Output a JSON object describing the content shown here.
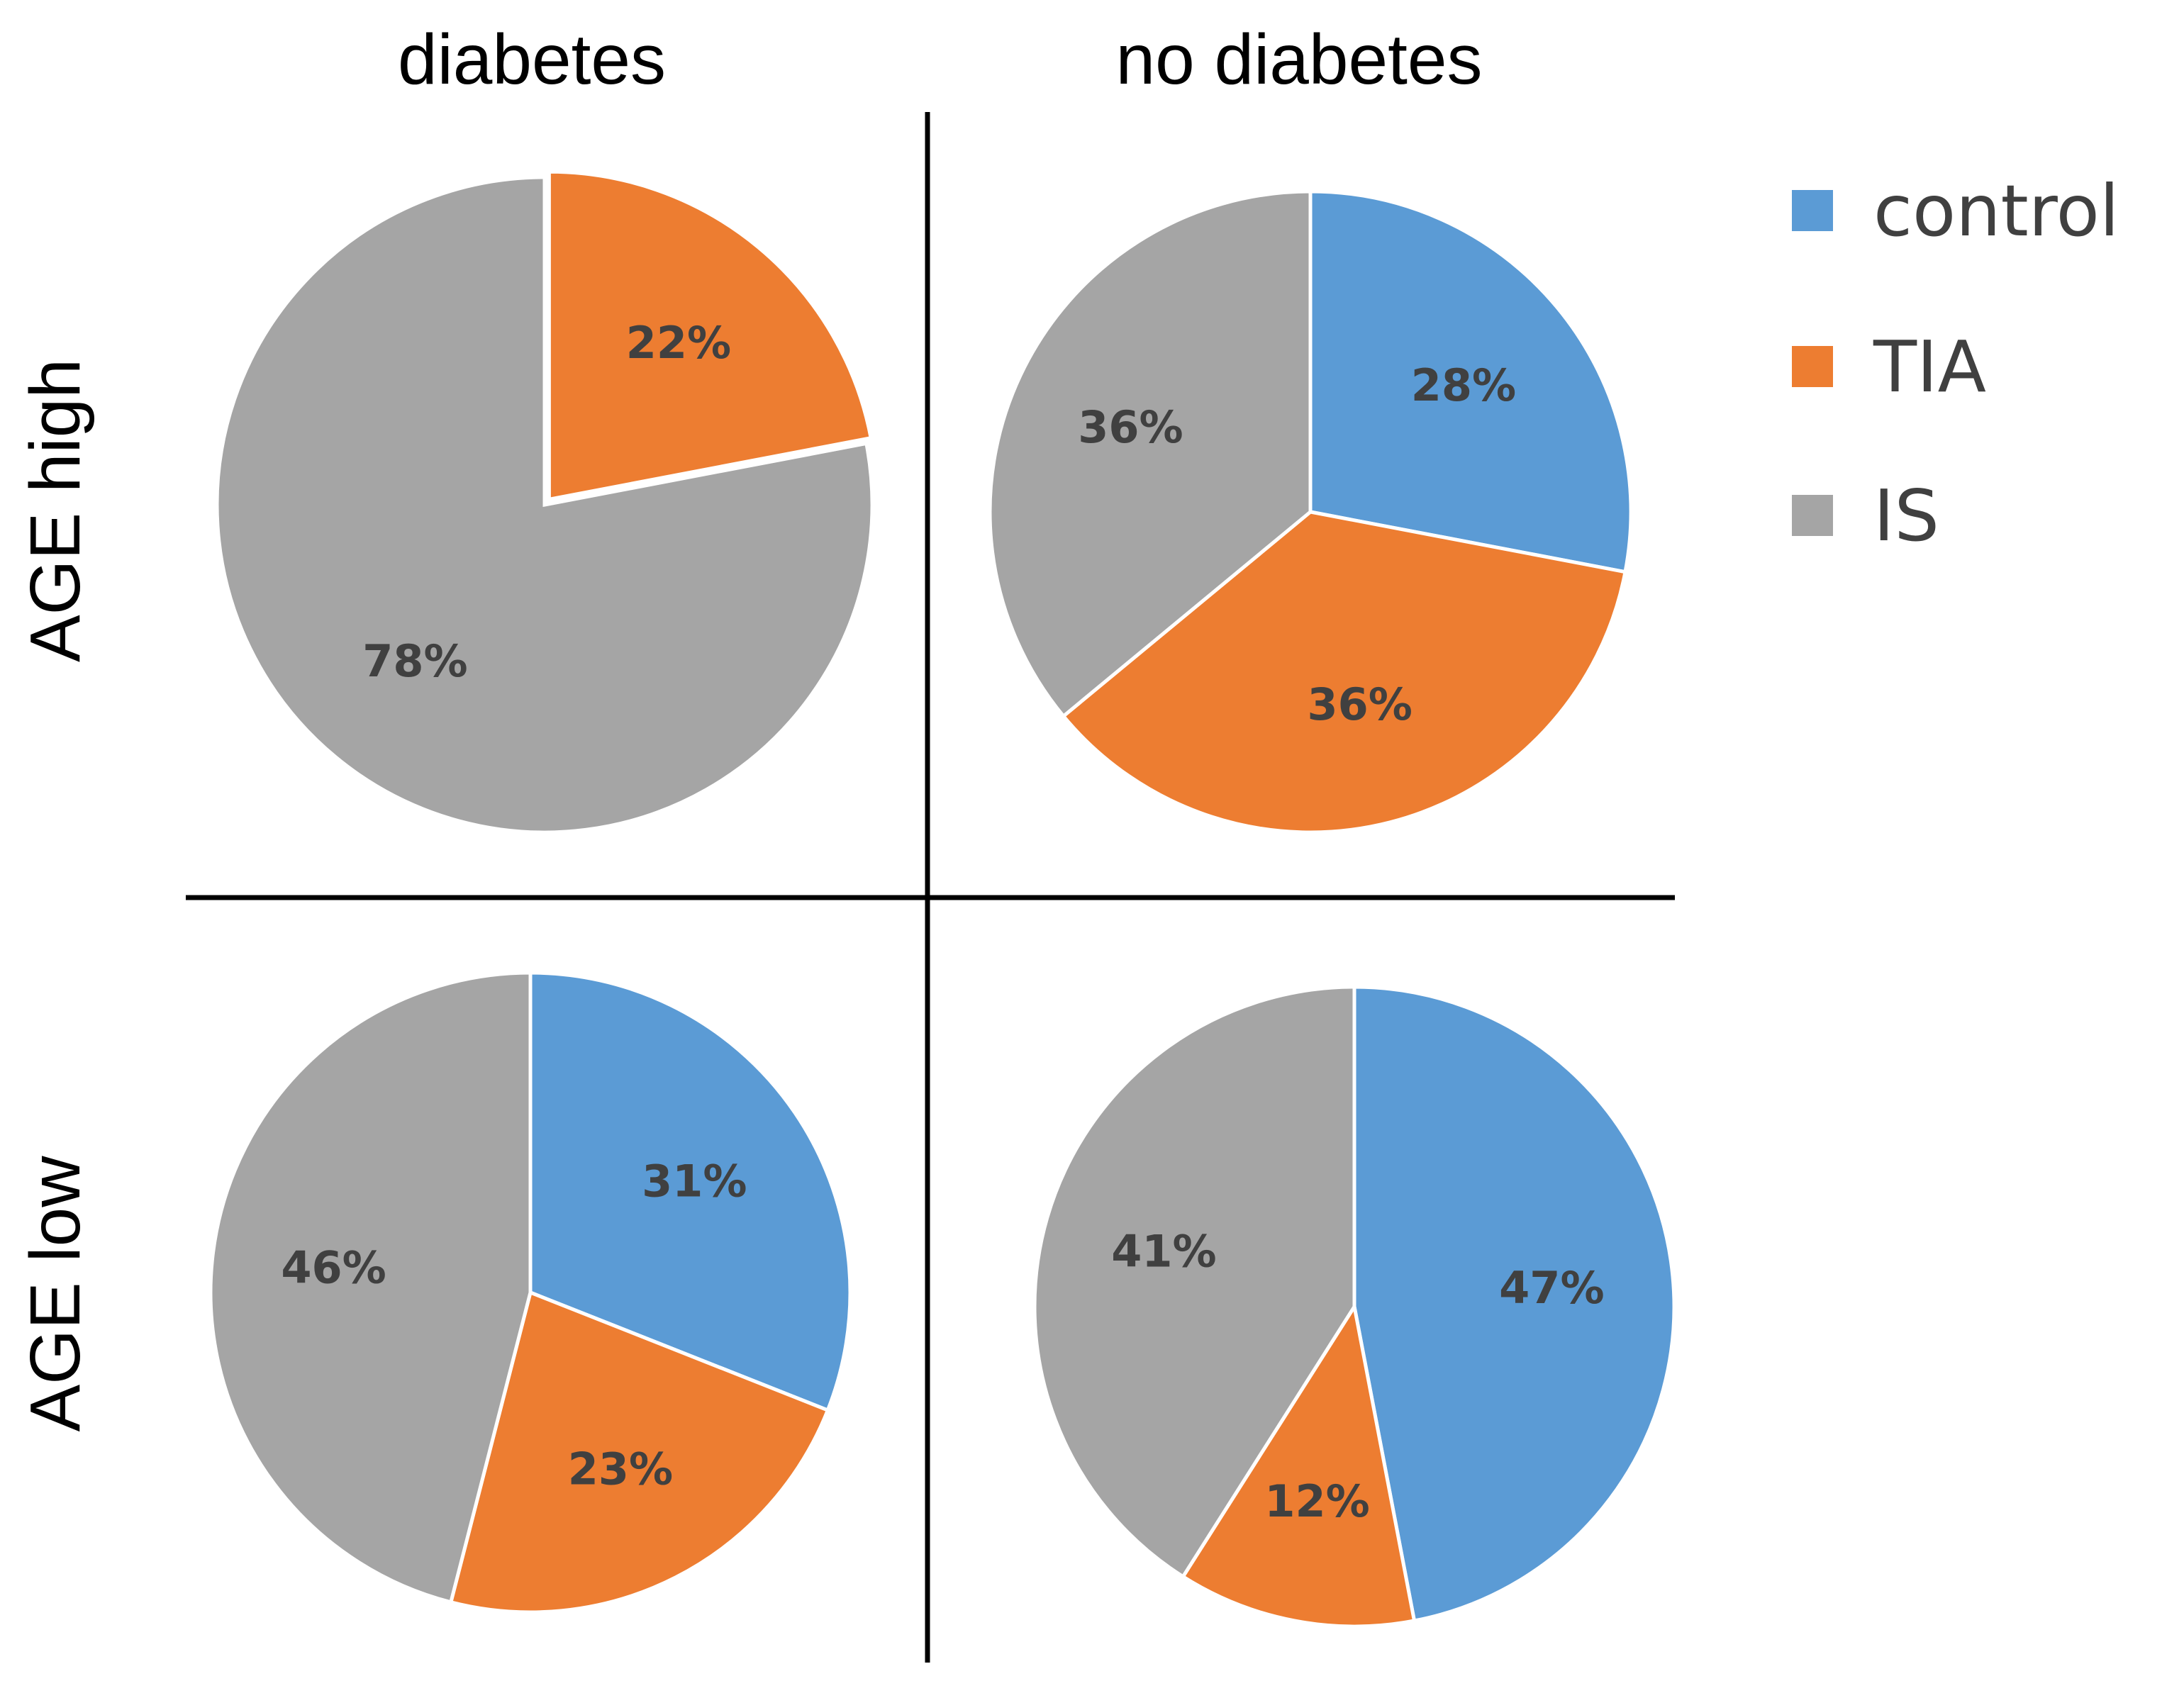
{
  "chart_data": {
    "type": "pie",
    "layout": "2x2 grid of pies",
    "column_labels": [
      "diabetes",
      "no diabetes"
    ],
    "row_labels": [
      "AGE high",
      "AGE low"
    ],
    "legend": {
      "position": "top-right",
      "entries": [
        {
          "name": "control",
          "color": "#5B9BD5"
        },
        {
          "name": "TIA",
          "color": "#ED7D31"
        },
        {
          "name": "IS",
          "color": "#A5A5A5"
        }
      ]
    },
    "pies": [
      {
        "id": "age-high-diabetes",
        "row": "AGE high",
        "column": "diabetes",
        "slices": [
          {
            "category": "control",
            "value": 0,
            "label": ""
          },
          {
            "category": "TIA",
            "value": 22,
            "label": "22%"
          },
          {
            "category": "IS",
            "value": 78,
            "label": "78%"
          }
        ]
      },
      {
        "id": "age-high-no-diabetes",
        "row": "AGE high",
        "column": "no diabetes",
        "slices": [
          {
            "category": "control",
            "value": 28,
            "label": "28%"
          },
          {
            "category": "TIA",
            "value": 36,
            "label": "36%"
          },
          {
            "category": "IS",
            "value": 36,
            "label": "36%"
          }
        ]
      },
      {
        "id": "age-low-diabetes",
        "row": "AGE low",
        "column": "diabetes",
        "slices": [
          {
            "category": "control",
            "value": 31,
            "label": "31%"
          },
          {
            "category": "TIA",
            "value": 23,
            "label": "23%"
          },
          {
            "category": "IS",
            "value": 46,
            "label": "46%"
          }
        ]
      },
      {
        "id": "age-low-no-diabetes",
        "row": "AGE low",
        "column": "no diabetes",
        "slices": [
          {
            "category": "control",
            "value": 47,
            "label": "47%"
          },
          {
            "category": "TIA",
            "value": 12,
            "label": "12%"
          },
          {
            "category": "IS",
            "value": 41,
            "label": "41%"
          }
        ]
      }
    ]
  }
}
